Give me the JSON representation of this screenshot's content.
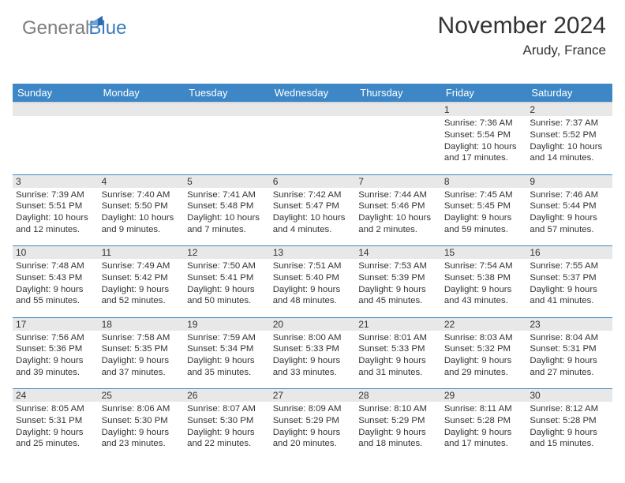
{
  "logo": {
    "text1": "General",
    "text2": "Blue"
  },
  "header": {
    "month_title": "November 2024",
    "location": "Arudy, France"
  },
  "colors": {
    "header_bg": "#3d87c7",
    "header_text": "#ffffff",
    "daynum_bg": "#e8e8e8",
    "cell_border": "#3d87c7",
    "body_text": "#333333",
    "logo_gray": "#7d7d7d",
    "logo_blue": "#3a7bbf",
    "page_bg": "#ffffff"
  },
  "day_headers": [
    "Sunday",
    "Monday",
    "Tuesday",
    "Wednesday",
    "Thursday",
    "Friday",
    "Saturday"
  ],
  "weeks": [
    [
      {
        "n": "",
        "sr": "",
        "ss": "",
        "dl": ""
      },
      {
        "n": "",
        "sr": "",
        "ss": "",
        "dl": ""
      },
      {
        "n": "",
        "sr": "",
        "ss": "",
        "dl": ""
      },
      {
        "n": "",
        "sr": "",
        "ss": "",
        "dl": ""
      },
      {
        "n": "",
        "sr": "",
        "ss": "",
        "dl": ""
      },
      {
        "n": "1",
        "sr": "Sunrise: 7:36 AM",
        "ss": "Sunset: 5:54 PM",
        "dl": "Daylight: 10 hours and 17 minutes."
      },
      {
        "n": "2",
        "sr": "Sunrise: 7:37 AM",
        "ss": "Sunset: 5:52 PM",
        "dl": "Daylight: 10 hours and 14 minutes."
      }
    ],
    [
      {
        "n": "3",
        "sr": "Sunrise: 7:39 AM",
        "ss": "Sunset: 5:51 PM",
        "dl": "Daylight: 10 hours and 12 minutes."
      },
      {
        "n": "4",
        "sr": "Sunrise: 7:40 AM",
        "ss": "Sunset: 5:50 PM",
        "dl": "Daylight: 10 hours and 9 minutes."
      },
      {
        "n": "5",
        "sr": "Sunrise: 7:41 AM",
        "ss": "Sunset: 5:48 PM",
        "dl": "Daylight: 10 hours and 7 minutes."
      },
      {
        "n": "6",
        "sr": "Sunrise: 7:42 AM",
        "ss": "Sunset: 5:47 PM",
        "dl": "Daylight: 10 hours and 4 minutes."
      },
      {
        "n": "7",
        "sr": "Sunrise: 7:44 AM",
        "ss": "Sunset: 5:46 PM",
        "dl": "Daylight: 10 hours and 2 minutes."
      },
      {
        "n": "8",
        "sr": "Sunrise: 7:45 AM",
        "ss": "Sunset: 5:45 PM",
        "dl": "Daylight: 9 hours and 59 minutes."
      },
      {
        "n": "9",
        "sr": "Sunrise: 7:46 AM",
        "ss": "Sunset: 5:44 PM",
        "dl": "Daylight: 9 hours and 57 minutes."
      }
    ],
    [
      {
        "n": "10",
        "sr": "Sunrise: 7:48 AM",
        "ss": "Sunset: 5:43 PM",
        "dl": "Daylight: 9 hours and 55 minutes."
      },
      {
        "n": "11",
        "sr": "Sunrise: 7:49 AM",
        "ss": "Sunset: 5:42 PM",
        "dl": "Daylight: 9 hours and 52 minutes."
      },
      {
        "n": "12",
        "sr": "Sunrise: 7:50 AM",
        "ss": "Sunset: 5:41 PM",
        "dl": "Daylight: 9 hours and 50 minutes."
      },
      {
        "n": "13",
        "sr": "Sunrise: 7:51 AM",
        "ss": "Sunset: 5:40 PM",
        "dl": "Daylight: 9 hours and 48 minutes."
      },
      {
        "n": "14",
        "sr": "Sunrise: 7:53 AM",
        "ss": "Sunset: 5:39 PM",
        "dl": "Daylight: 9 hours and 45 minutes."
      },
      {
        "n": "15",
        "sr": "Sunrise: 7:54 AM",
        "ss": "Sunset: 5:38 PM",
        "dl": "Daylight: 9 hours and 43 minutes."
      },
      {
        "n": "16",
        "sr": "Sunrise: 7:55 AM",
        "ss": "Sunset: 5:37 PM",
        "dl": "Daylight: 9 hours and 41 minutes."
      }
    ],
    [
      {
        "n": "17",
        "sr": "Sunrise: 7:56 AM",
        "ss": "Sunset: 5:36 PM",
        "dl": "Daylight: 9 hours and 39 minutes."
      },
      {
        "n": "18",
        "sr": "Sunrise: 7:58 AM",
        "ss": "Sunset: 5:35 PM",
        "dl": "Daylight: 9 hours and 37 minutes."
      },
      {
        "n": "19",
        "sr": "Sunrise: 7:59 AM",
        "ss": "Sunset: 5:34 PM",
        "dl": "Daylight: 9 hours and 35 minutes."
      },
      {
        "n": "20",
        "sr": "Sunrise: 8:00 AM",
        "ss": "Sunset: 5:33 PM",
        "dl": "Daylight: 9 hours and 33 minutes."
      },
      {
        "n": "21",
        "sr": "Sunrise: 8:01 AM",
        "ss": "Sunset: 5:33 PM",
        "dl": "Daylight: 9 hours and 31 minutes."
      },
      {
        "n": "22",
        "sr": "Sunrise: 8:03 AM",
        "ss": "Sunset: 5:32 PM",
        "dl": "Daylight: 9 hours and 29 minutes."
      },
      {
        "n": "23",
        "sr": "Sunrise: 8:04 AM",
        "ss": "Sunset: 5:31 PM",
        "dl": "Daylight: 9 hours and 27 minutes."
      }
    ],
    [
      {
        "n": "24",
        "sr": "Sunrise: 8:05 AM",
        "ss": "Sunset: 5:31 PM",
        "dl": "Daylight: 9 hours and 25 minutes."
      },
      {
        "n": "25",
        "sr": "Sunrise: 8:06 AM",
        "ss": "Sunset: 5:30 PM",
        "dl": "Daylight: 9 hours and 23 minutes."
      },
      {
        "n": "26",
        "sr": "Sunrise: 8:07 AM",
        "ss": "Sunset: 5:30 PM",
        "dl": "Daylight: 9 hours and 22 minutes."
      },
      {
        "n": "27",
        "sr": "Sunrise: 8:09 AM",
        "ss": "Sunset: 5:29 PM",
        "dl": "Daylight: 9 hours and 20 minutes."
      },
      {
        "n": "28",
        "sr": "Sunrise: 8:10 AM",
        "ss": "Sunset: 5:29 PM",
        "dl": "Daylight: 9 hours and 18 minutes."
      },
      {
        "n": "29",
        "sr": "Sunrise: 8:11 AM",
        "ss": "Sunset: 5:28 PM",
        "dl": "Daylight: 9 hours and 17 minutes."
      },
      {
        "n": "30",
        "sr": "Sunrise: 8:12 AM",
        "ss": "Sunset: 5:28 PM",
        "dl": "Daylight: 9 hours and 15 minutes."
      }
    ]
  ]
}
